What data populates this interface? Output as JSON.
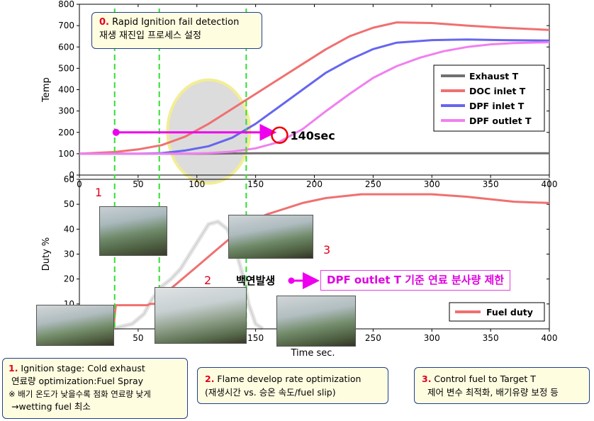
{
  "chart_data": [
    {
      "type": "line",
      "ylabel": "Temp",
      "xlim": [
        0,
        400
      ],
      "ylim": [
        0,
        800
      ],
      "x_ticks": [
        "0",
        "50",
        "100",
        "150",
        "200",
        "250",
        "300",
        "350",
        "400"
      ],
      "y_ticks": [
        "0",
        "100",
        "200",
        "300",
        "400",
        "500",
        "600",
        "700",
        "800"
      ],
      "grid": false,
      "legend_position": "right",
      "series": [
        {
          "name": "Exhaust T",
          "color": "#707070",
          "x": [
            0,
            50,
            100,
            150,
            200,
            250,
            300,
            350,
            400
          ],
          "y": [
            100,
            100,
            100,
            102,
            102,
            102,
            102,
            102,
            102
          ]
        },
        {
          "name": "DOC inlet T",
          "color": "#f07070",
          "x": [
            0,
            30,
            50,
            70,
            90,
            110,
            130,
            150,
            170,
            190,
            210,
            230,
            250,
            270,
            300,
            330,
            360,
            400
          ],
          "y": [
            100,
            108,
            120,
            140,
            180,
            240,
            310,
            380,
            450,
            520,
            590,
            650,
            690,
            715,
            712,
            700,
            690,
            680
          ]
        },
        {
          "name": "DPF inlet T",
          "color": "#6666ee",
          "x": [
            0,
            50,
            70,
            90,
            110,
            130,
            150,
            170,
            190,
            210,
            230,
            250,
            270,
            300,
            330,
            360,
            400
          ],
          "y": [
            100,
            100,
            103,
            115,
            135,
            175,
            240,
            320,
            400,
            480,
            540,
            590,
            620,
            632,
            635,
            632,
            630
          ]
        },
        {
          "name": "DPF outlet T",
          "color": "#f080f0",
          "x": [
            0,
            50,
            90,
            110,
            130,
            150,
            170,
            190,
            210,
            230,
            250,
            270,
            290,
            310,
            330,
            350,
            370,
            400
          ],
          "y": [
            100,
            100,
            100,
            103,
            110,
            125,
            155,
            215,
            300,
            380,
            455,
            510,
            550,
            580,
            600,
            612,
            618,
            622
          ]
        }
      ]
    },
    {
      "type": "line",
      "xlabel": "Time sec.",
      "ylabel": "Duty %",
      "xlim": [
        0,
        400
      ],
      "ylim": [
        0,
        60
      ],
      "x_ticks": [
        "0",
        "50",
        "100",
        "150",
        "200",
        "250",
        "300",
        "350",
        "400"
      ],
      "y_ticks": [
        "0",
        "10",
        "20",
        "30",
        "40",
        "50",
        "60"
      ],
      "grid": false,
      "legend_position": "bottom-right",
      "series": [
        {
          "name": "Fuel duty",
          "color": "#f07070",
          "x": [
            0,
            29,
            30,
            31,
            58,
            60,
            62,
            68,
            70,
            80,
            90,
            100,
            110,
            120,
            130,
            140,
            150,
            160,
            170,
            180,
            190,
            200,
            210,
            220,
            230,
            240,
            250,
            300,
            330,
            350,
            370,
            400
          ],
          "y": [
            0,
            0,
            5,
            9.5,
            9.5,
            10,
            10,
            10,
            13,
            17,
            21,
            25,
            29,
            33,
            37,
            41,
            44,
            46,
            47.5,
            49,
            50.5,
            51.5,
            52.5,
            53,
            53.5,
            54,
            54,
            54,
            53,
            52,
            51,
            50.5
          ]
        }
      ]
    }
  ],
  "markers": {
    "green_lines_x": [
      30,
      68,
      142
    ],
    "arrow_from_x": 30,
    "arrow_to_x": 168,
    "arrow_y": 200,
    "marker_label": "140sec"
  },
  "annotations": {
    "top_note": {
      "num": "0.",
      "line1": " Rapid Ignition fail detection",
      "line2": "재생 재진입 프로세스 설정"
    },
    "stage1_label": "1",
    "stage2_label": "2",
    "stage3_label": "3",
    "smoke_label": "백연발생",
    "callout": "DPF outlet T 기준 연료 분사량 제한",
    "note1": {
      "num": "1.",
      "line1": " Ignition stage: Cold exhaust",
      "line2": "연료량 optimization:Fuel Spray",
      "line3": "※ 배기 온도가 낮을수록 점화 연료량 낮게",
      "line4": "→wetting fuel 최소"
    },
    "note2": {
      "num": "2.",
      "line1": " Flame develop rate optimization",
      "line2": "(재생시간 vs. 승온 속도/fuel slip)"
    },
    "note3": {
      "num": "3.",
      "line1": " Control fuel to Target T",
      "line2": "제어 변수 최적화, 배기유량 보정 등"
    }
  }
}
